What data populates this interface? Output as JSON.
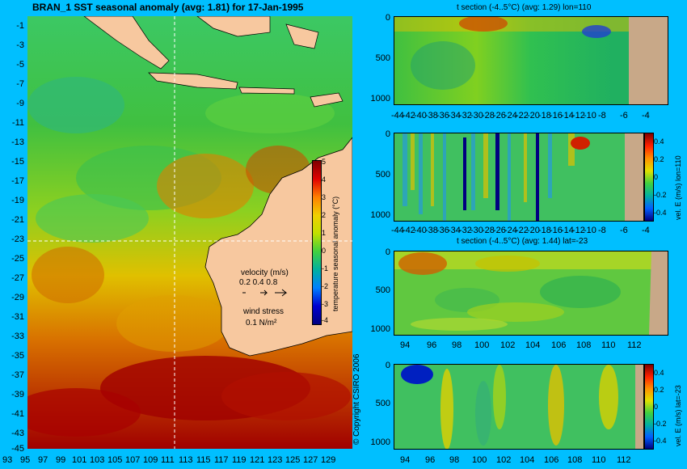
{
  "map": {
    "title": "BRAN_1 SST seasonal anomaly (avg: 1.81) for 17-Jan-1995",
    "lat_labels": [
      "-1",
      "-3",
      "-5",
      "-7",
      "-9",
      "-11",
      "-13",
      "-15",
      "-17",
      "-19",
      "-21",
      "-23",
      "-25",
      "-27",
      "-29",
      "-31",
      "-33",
      "-35",
      "-37",
      "-39",
      "-41",
      "-43",
      "-45"
    ],
    "lon_labels": [
      "93",
      "95",
      "97",
      "99",
      "101",
      "103",
      "105",
      "107",
      "109",
      "111",
      "113",
      "115",
      "117",
      "119",
      "121",
      "123",
      "125",
      "127",
      "129"
    ],
    "colorbar": {
      "label": "temperature seasonal anomaly (°C)",
      "ticks": [
        "5",
        "4",
        "3",
        "2",
        "1",
        "0",
        "-1",
        "-2",
        "-3",
        "-4"
      ]
    },
    "velocity_label": "velocity (m/s)",
    "velocity_scale": "0.2 0.4 0.8",
    "wind_label": "wind stress",
    "wind_scale": "0.1 N/m²",
    "copyright": "© Copyright CSIRO 2006",
    "colors": {
      "land": "#F7C89F",
      "ocean_bg": "#00BFFF"
    }
  },
  "panels": {
    "p1": {
      "title": "t section (-4..5°C) (avg: 1.29) lon=110",
      "y_ticks": [
        "0",
        "500",
        "1000"
      ],
      "x_ticks": [
        "-44",
        "-42",
        "-40",
        "-38",
        "-36",
        "-34",
        "-32",
        "-30",
        "-28",
        "-26",
        "-24",
        "-22",
        "-20",
        "-18",
        "-16",
        "-14",
        "-12",
        "-10",
        "-8",
        "-6",
        "-4"
      ]
    },
    "p2": {
      "y_ticks": [
        "0",
        "500",
        "1000"
      ],
      "x_ticks": [
        "-44",
        "-42",
        "-40",
        "-38",
        "-36",
        "-34",
        "-32",
        "-30",
        "-28",
        "-26",
        "-24",
        "-22",
        "-20",
        "-18",
        "-16",
        "-14",
        "-12",
        "-10",
        "-8",
        "-6",
        "-4"
      ],
      "colorbar_label": "vel. E (m/s) lon=110",
      "cb_ticks": [
        "0.4",
        "0.2",
        "0",
        "-0.2",
        "-0.4"
      ]
    },
    "p3": {
      "title": "t section (-4..5°C) (avg: 1.44) lat=-23",
      "y_ticks": [
        "0",
        "500",
        "1000"
      ],
      "x_ticks": [
        "94",
        "96",
        "98",
        "100",
        "102",
        "104",
        "106",
        "108",
        "110",
        "112"
      ]
    },
    "p4": {
      "y_ticks": [
        "0",
        "500",
        "1000"
      ],
      "x_ticks": [
        "94",
        "96",
        "98",
        "100",
        "102",
        "104",
        "106",
        "108",
        "110",
        "112"
      ],
      "colorbar_label": "vel. E (m/s) lat=-23",
      "cb_ticks": [
        "0.4",
        "0.2",
        "0",
        "-0.2",
        "-0.4"
      ]
    }
  }
}
